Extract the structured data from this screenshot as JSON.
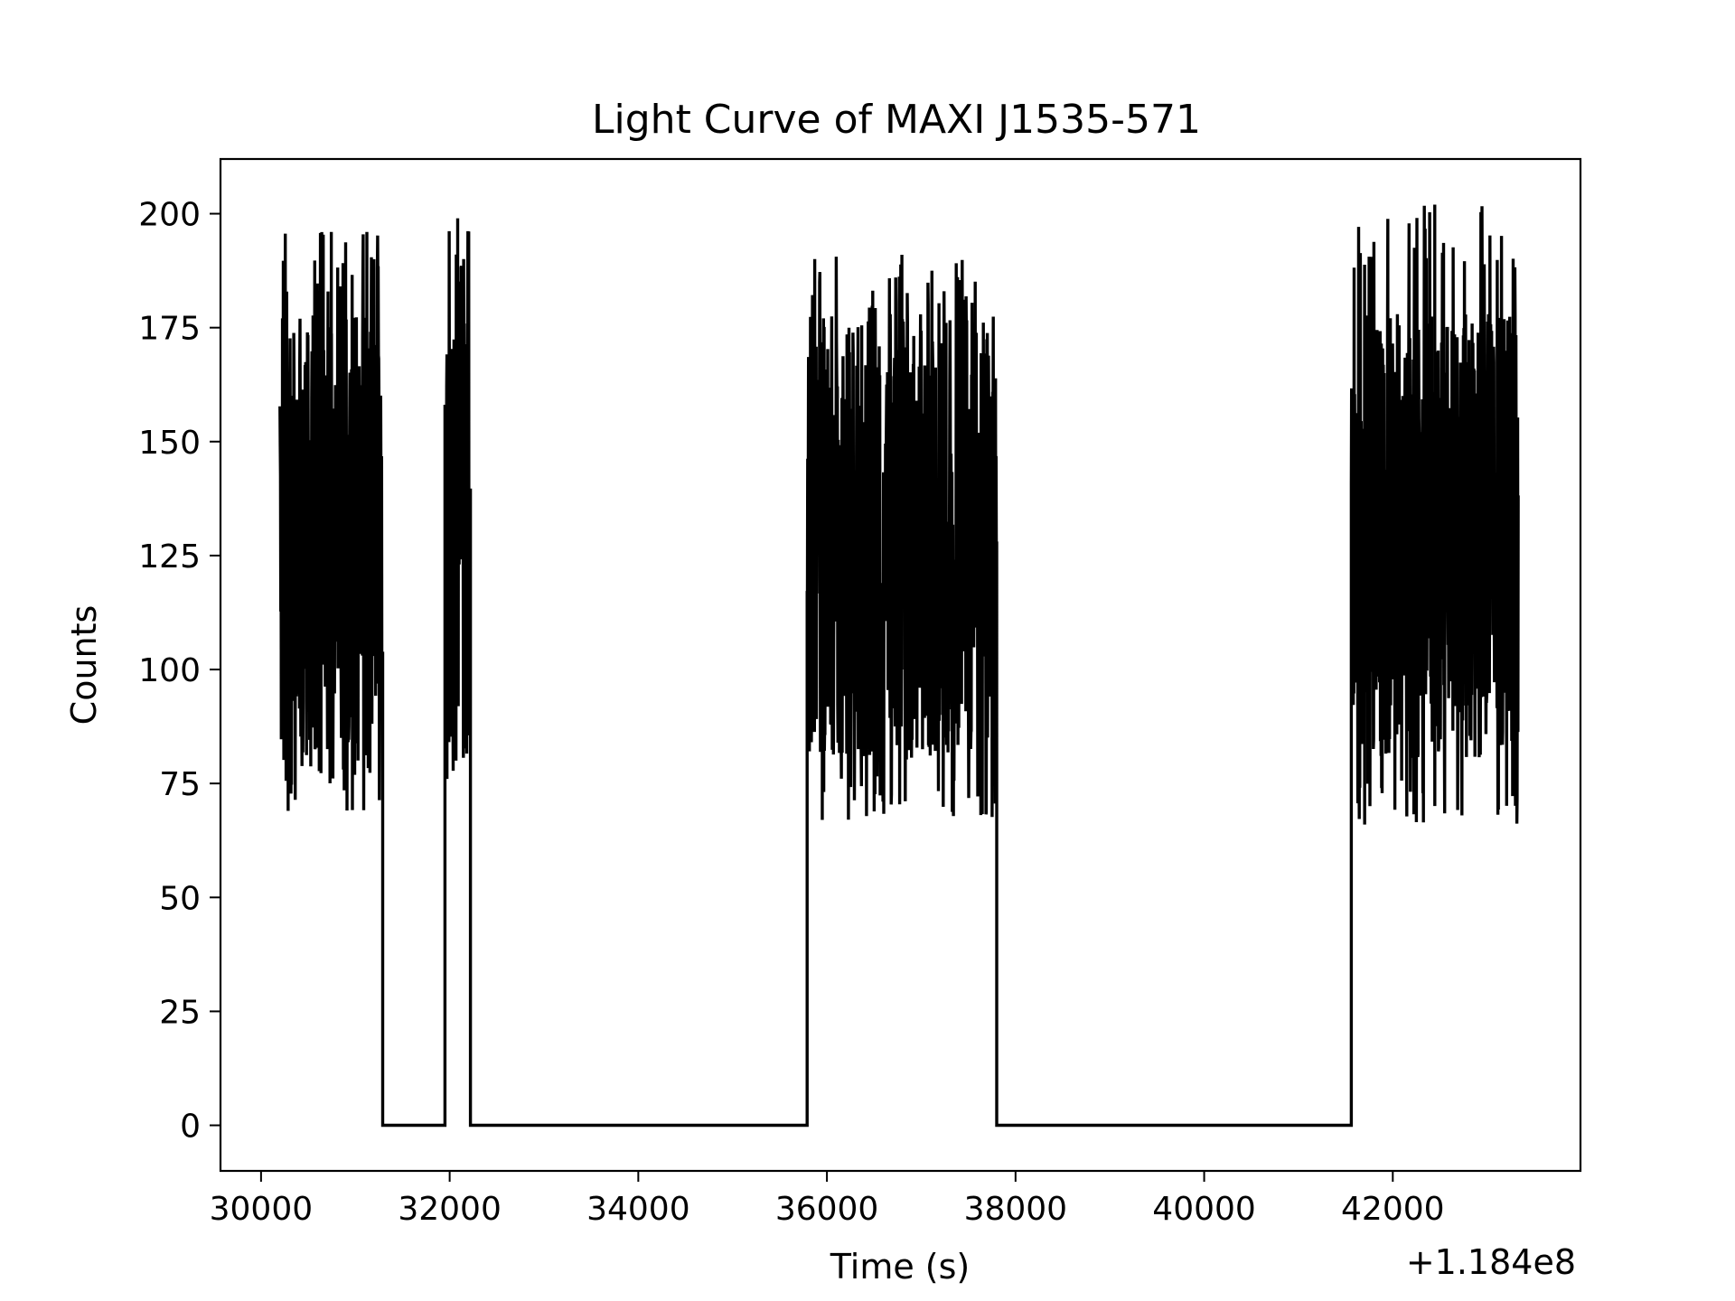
{
  "chart_data": {
    "type": "line",
    "title": "Light Curve of MAXI J1535-571",
    "xlabel": "Time (s)",
    "ylabel": "Counts",
    "x_offset_label": "+1.184e8",
    "x_offset": 118400000,
    "xlim": [
      29570,
      43990
    ],
    "ylim": [
      -10,
      212
    ],
    "x_ticks": [
      30000,
      32000,
      34000,
      36000,
      38000,
      40000,
      42000
    ],
    "x_tick_labels": [
      "30000",
      "32000",
      "34000",
      "36000",
      "38000",
      "40000",
      "42000"
    ],
    "y_ticks": [
      0,
      25,
      50,
      75,
      100,
      125,
      150,
      175,
      200
    ],
    "y_tick_labels": [
      "0",
      "25",
      "50",
      "75",
      "100",
      "125",
      "150",
      "175",
      "200"
    ],
    "grid": false,
    "line_color": "#000000",
    "segments": [
      {
        "x_start": 30200,
        "x_end": 31290,
        "count_min": 69,
        "count_max": 196
      },
      {
        "x_start": 31950,
        "x_end": 32220,
        "count_min": 76,
        "count_max": 199
      },
      {
        "x_start": 35790,
        "x_end": 37800,
        "count_min": 67,
        "count_max": 191
      },
      {
        "x_start": 41560,
        "x_end": 43330,
        "count_min": 66,
        "count_max": 202
      }
    ],
    "gaps": [
      {
        "x_start": 31290,
        "x_end": 31950,
        "count": 0
      },
      {
        "x_start": 32220,
        "x_end": 35790,
        "count": 0
      },
      {
        "x_start": 37800,
        "x_end": 41560,
        "count": 0
      }
    ]
  }
}
